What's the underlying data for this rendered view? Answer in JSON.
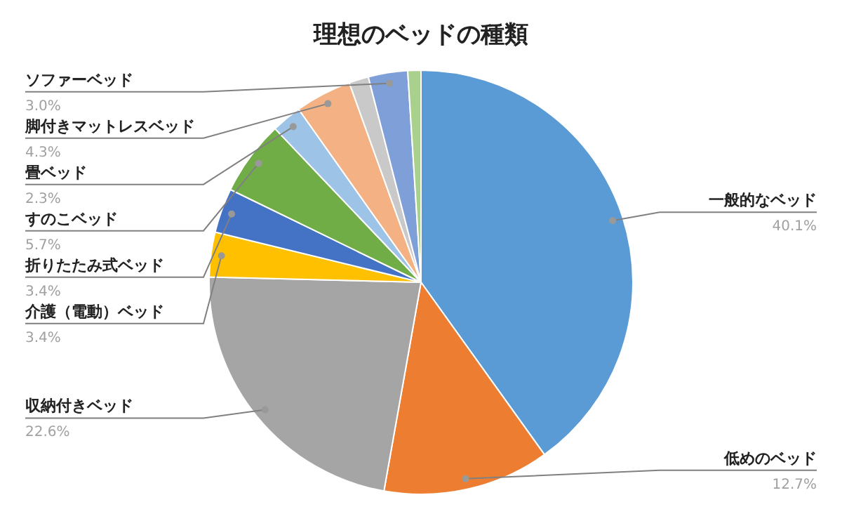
{
  "chart_data": {
    "type": "pie",
    "title": "理想のベッドの種類",
    "categories": [
      "一般的なベッド",
      "低めのベッド",
      "収納付きベッド",
      "介護（電動）ベッド",
      "折りたたみ式ベッド",
      "すのこベッド",
      "畳ベッド",
      "脚付きマットレスベッド",
      null,
      "ソファーベッド",
      null
    ],
    "values": [
      40.1,
      12.7,
      22.6,
      3.4,
      3.4,
      5.7,
      2.3,
      4.3,
      1.5,
      3.0,
      1.0
    ],
    "value_labels": [
      "40.1%",
      "12.7%",
      "22.6%",
      "3.4%",
      "3.4%",
      "5.7%",
      "2.3%",
      "4.3%",
      null,
      "3.0%",
      null
    ],
    "colors": [
      "#5b9bd5",
      "#ed7d31",
      "#a5a5a5",
      "#ffc000",
      "#4472c4",
      "#70ad47",
      "#9dc3e6",
      "#f4b183",
      "#c9c9c9",
      "#7f9fd8",
      "#a9d18e"
    ]
  }
}
